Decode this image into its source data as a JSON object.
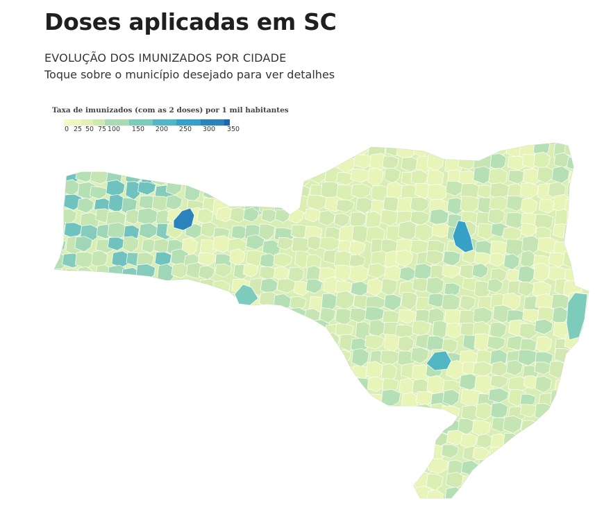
{
  "header": {
    "title": "Doses aplicadas em SC",
    "subtitle": "EVOLUÇÃO DOS IMUNIZADOS POR CIDADE",
    "instruction": "Toque sobre o município desejado para ver detalhes"
  },
  "legend": {
    "title": "Taxa de imunizados (com as 2 doses) por 1 mil habitantes",
    "ticks": [
      "0",
      "25",
      "50",
      "75",
      "100",
      "150",
      "200",
      "250",
      "300",
      "350"
    ],
    "tick_values": [
      0,
      25,
      50,
      75,
      100,
      150,
      200,
      250,
      300,
      350
    ],
    "colors": [
      "#f7fcc4",
      "#eef7bd",
      "#e2f1b7",
      "#cde9b2",
      "#a8dbb5",
      "#7ccbbb",
      "#52b7c2",
      "#36a0c6",
      "#2a83bb",
      "#2166ac"
    ]
  },
  "map": {
    "region": "Santa Catarina",
    "highlighted_fill_levels": {
      "far_west_dark_municipality": 340,
      "plateau_center_municipality": 250,
      "south_center_municipality": 210,
      "coastal_strip_municipality": 170
    }
  }
}
